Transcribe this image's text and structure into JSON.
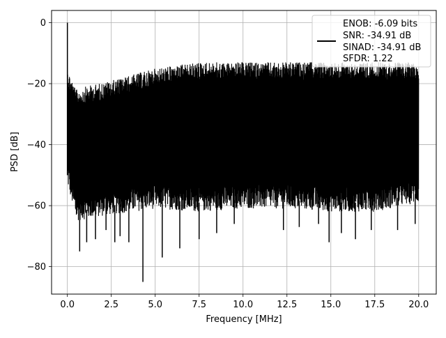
{
  "chart_data": {
    "type": "line",
    "title": "",
    "xlabel": "Frequency [MHz]",
    "ylabel": "PSD [dB]",
    "xlim": [
      -0.9,
      21.0
    ],
    "ylim": [
      -89.0,
      4.0
    ],
    "xticks": [
      0.0,
      2.5,
      5.0,
      7.5,
      10.0,
      12.5,
      15.0,
      17.5,
      20.0
    ],
    "xtick_labels": [
      "0.0",
      "2.5",
      "5.0",
      "7.5",
      "10.0",
      "12.5",
      "15.0",
      "17.5",
      "20.0"
    ],
    "yticks": [
      0,
      -20,
      -40,
      -60,
      -80
    ],
    "ytick_labels": [
      "0",
      "−20",
      "−40",
      "−60",
      "−80"
    ],
    "grid": true,
    "legend_position": "top-right",
    "legend": {
      "line1": "ENOB: -6.09 bits",
      "line2": "SNR: -34.91 dB",
      "line3": "SINAD: -34.91 dB",
      "line4": "SFDR: 1.22"
    },
    "series": [
      {
        "color": "#000000",
        "x_range": [
          0.0,
          20.0
        ],
        "peak": {
          "x": 0.0,
          "y": 0.0
        },
        "upper_envelope": [
          [
            0.0,
            -15
          ],
          [
            0.5,
            -22
          ],
          [
            1.0,
            -21
          ],
          [
            2.5,
            -19
          ],
          [
            5.0,
            -15
          ],
          [
            7.5,
            -13
          ],
          [
            10.0,
            -13
          ],
          [
            12.5,
            -13
          ],
          [
            15.0,
            -13
          ],
          [
            17.5,
            -13
          ],
          [
            20.0,
            -13
          ]
        ],
        "lower_envelope": [
          [
            0.0,
            -53
          ],
          [
            0.5,
            -65
          ],
          [
            2.5,
            -63
          ],
          [
            5.0,
            -61
          ],
          [
            7.5,
            -62
          ],
          [
            10.0,
            -61
          ],
          [
            12.5,
            -61
          ],
          [
            15.0,
            -62
          ],
          [
            17.5,
            -62
          ],
          [
            20.0,
            -59
          ]
        ],
        "deep_notches": [
          [
            0.7,
            -75
          ],
          [
            1.1,
            -72
          ],
          [
            1.6,
            -71
          ],
          [
            2.2,
            -68
          ],
          [
            2.7,
            -72
          ],
          [
            3.0,
            -70
          ],
          [
            3.5,
            -72
          ],
          [
            4.3,
            -85
          ],
          [
            5.4,
            -77
          ],
          [
            6.4,
            -74
          ],
          [
            7.5,
            -71
          ],
          [
            8.5,
            -69
          ],
          [
            9.5,
            -66
          ],
          [
            12.3,
            -68
          ],
          [
            13.2,
            -67
          ],
          [
            14.3,
            -66
          ],
          [
            14.9,
            -72
          ],
          [
            15.6,
            -69
          ],
          [
            16.4,
            -71
          ],
          [
            17.3,
            -68
          ],
          [
            18.8,
            -68
          ],
          [
            19.8,
            -66
          ]
        ]
      }
    ]
  }
}
